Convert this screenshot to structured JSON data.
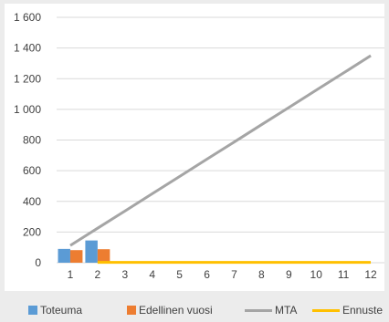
{
  "chart_data": {
    "type": "bar",
    "categories": [
      "1",
      "2",
      "3",
      "4",
      "5",
      "6",
      "7",
      "8",
      "9",
      "10",
      "11",
      "12"
    ],
    "ylim": [
      0,
      1600
    ],
    "yticks": [
      0,
      200,
      400,
      600,
      800,
      1000,
      1200,
      1400,
      1600
    ],
    "ytick_labels": [
      "0",
      "200",
      "400",
      "600",
      "800",
      "1 000",
      "1 200",
      "1 400",
      "1 600"
    ],
    "grid": true,
    "legend_position": "bottom",
    "series": [
      {
        "name": "Toteuma",
        "kind": "bar",
        "color": "#5b9bd5",
        "values": [
          90,
          145,
          null,
          null,
          null,
          null,
          null,
          null,
          null,
          null,
          null,
          null
        ]
      },
      {
        "name": "Edellinen vuosi",
        "kind": "bar",
        "color": "#ed7d31",
        "values": [
          82,
          88,
          null,
          null,
          null,
          null,
          null,
          null,
          null,
          null,
          null,
          null
        ]
      },
      {
        "name": "MTA",
        "kind": "line",
        "color": "#a5a5a5",
        "values": [
          112,
          225,
          337,
          450,
          562,
          675,
          787,
          900,
          1012,
          1125,
          1237,
          1350
        ]
      },
      {
        "name": "Ennuste",
        "kind": "line",
        "color": "#ffc000",
        "values": [
          null,
          2,
          2,
          2,
          2,
          2,
          2,
          2,
          2,
          2,
          2,
          2
        ]
      }
    ]
  }
}
